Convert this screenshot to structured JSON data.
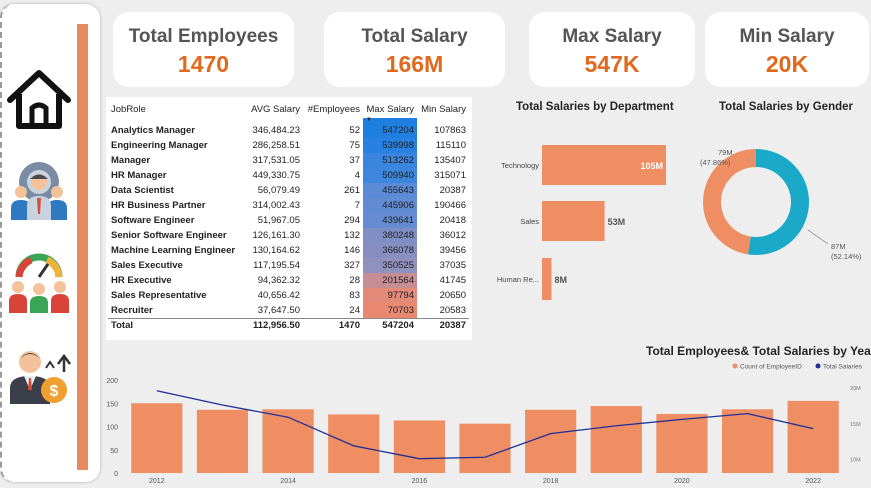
{
  "kpis": [
    {
      "label": "Total Employees",
      "value": "1470"
    },
    {
      "label": "Total Salary",
      "value": "166M"
    },
    {
      "label": "Max Salary",
      "value": "547K"
    },
    {
      "label": "Min Salary",
      "value": "20K"
    }
  ],
  "sidebar": {
    "items": [
      {
        "name": "home",
        "icon": "house-icon"
      },
      {
        "name": "hr-settings",
        "icon": "person-gear-icon"
      },
      {
        "name": "team-performance",
        "icon": "team-gauge-icon"
      },
      {
        "name": "salary",
        "icon": "person-money-icon"
      }
    ]
  },
  "table": {
    "columns": [
      "JobRole",
      "AVG Salary",
      "#Employees",
      "Max Salary",
      "Min Salary"
    ],
    "rows": [
      {
        "role": "Analytics Manager",
        "avg": "346,484.23",
        "count": "52",
        "max": "547204",
        "min": "107863",
        "shade": "#1f7fe0"
      },
      {
        "role": "Engineering Manager",
        "avg": "286,258.51",
        "count": "75",
        "max": "539998",
        "min": "115110",
        "shade": "#2681e0"
      },
      {
        "role": "Manager",
        "avg": "317,531.05",
        "count": "37",
        "max": "513262",
        "min": "135407",
        "shade": "#3a85dd"
      },
      {
        "role": "HR Manager",
        "avg": "449,330.75",
        "count": "4",
        "max": "509940",
        "min": "315071",
        "shade": "#3c86dd"
      },
      {
        "role": "Data Scientist",
        "avg": "56,079.49",
        "count": "261",
        "max": "455643",
        "min": "20387",
        "shade": "#5b8ad6"
      },
      {
        "role": "HR Business Partner",
        "avg": "314,002.43",
        "count": "7",
        "max": "445906",
        "min": "190466",
        "shade": "#618bd3"
      },
      {
        "role": "Software Engineer",
        "avg": "51,967.05",
        "count": "294",
        "max": "439641",
        "min": "20418",
        "shade": "#658cd2"
      },
      {
        "role": "Senior Software Engineer",
        "avg": "126,161.30",
        "count": "132",
        "max": "380248",
        "min": "36012",
        "shade": "#7f8fc6"
      },
      {
        "role": "Machine Learning Engineer",
        "avg": "130,164.62",
        "count": "146",
        "max": "366078",
        "min": "39456",
        "shade": "#878fc2"
      },
      {
        "role": "Sales Executive",
        "avg": "117,195.54",
        "count": "327",
        "max": "350525",
        "min": "37035",
        "shade": "#9191bd"
      },
      {
        "role": "HR Executive",
        "avg": "94,362.32",
        "count": "28",
        "max": "201564",
        "min": "41745",
        "shade": "#c68d95"
      },
      {
        "role": "Sales Representative",
        "avg": "40,656.42",
        "count": "83",
        "max": "97794",
        "min": "20650",
        "shade": "#e48a78"
      },
      {
        "role": "Recruiter",
        "avg": "37,647.50",
        "count": "24",
        "max": "70703",
        "min": "20583",
        "shade": "#e98a70"
      }
    ],
    "total": {
      "role": "Total",
      "avg": "112,956.50",
      "count": "1470",
      "max": "547204",
      "min": "20387"
    }
  },
  "chart_data": [
    {
      "type": "bar",
      "orientation": "horizontal",
      "title": "Total Salaries by Department",
      "categories": [
        "Technology",
        "Sales",
        "Human Re..."
      ],
      "values": [
        105,
        53,
        8
      ],
      "value_labels": [
        "105M",
        "53M",
        "8M"
      ],
      "color": "#ee8e62"
    },
    {
      "type": "pie",
      "donut": true,
      "title": "Total Salaries by Gender",
      "slices": [
        {
          "value": 79,
          "percent": 47.86,
          "label": "79M",
          "pct_label": "(47.86%)",
          "color": "#ee8e62"
        },
        {
          "value": 87,
          "percent": 52.14,
          "label": "87M",
          "pct_label": "(52.14%)",
          "color": "#1ba9c9"
        }
      ]
    },
    {
      "type": "bar",
      "title": "Total Employees& Total Salaries by Year",
      "legend": [
        "Count of EmployeeID",
        "Total Salaries"
      ],
      "legend_position": "top-right",
      "x_tick_labels": [
        "2012",
        "2014",
        "2016",
        "2018",
        "2020",
        "2022"
      ],
      "y_ticks": [
        0,
        50,
        100,
        150,
        200
      ],
      "y_tick_labels": [
        "0",
        "50",
        "100",
        "150",
        "200"
      ],
      "y2_tick_labels": [
        "20M",
        "15M",
        "10M"
      ],
      "ylim": [
        0,
        200
      ],
      "y2lim": [
        8,
        21
      ],
      "series": [
        {
          "name": "Count of EmployeeID",
          "type": "bar",
          "color": "#ee8e62",
          "x": [
            2012,
            2013,
            2014,
            2015,
            2016,
            2017,
            2018,
            2019,
            2020,
            2021,
            2022
          ],
          "values": [
            150,
            136,
            137,
            126,
            113,
            106,
            136,
            144,
            127,
            137,
            155
          ]
        },
        {
          "name": "Total Salaries",
          "type": "line",
          "color": "#1e2f99",
          "x": [
            2012,
            2013,
            2014,
            2015,
            2016,
            2017,
            2018,
            2019,
            2020,
            2021,
            2022
          ],
          "values": [
            19.5,
            17.5,
            15.8,
            11.8,
            10.0,
            10.2,
            13.5,
            14.6,
            15.5,
            16.3,
            14.2
          ]
        }
      ]
    }
  ]
}
